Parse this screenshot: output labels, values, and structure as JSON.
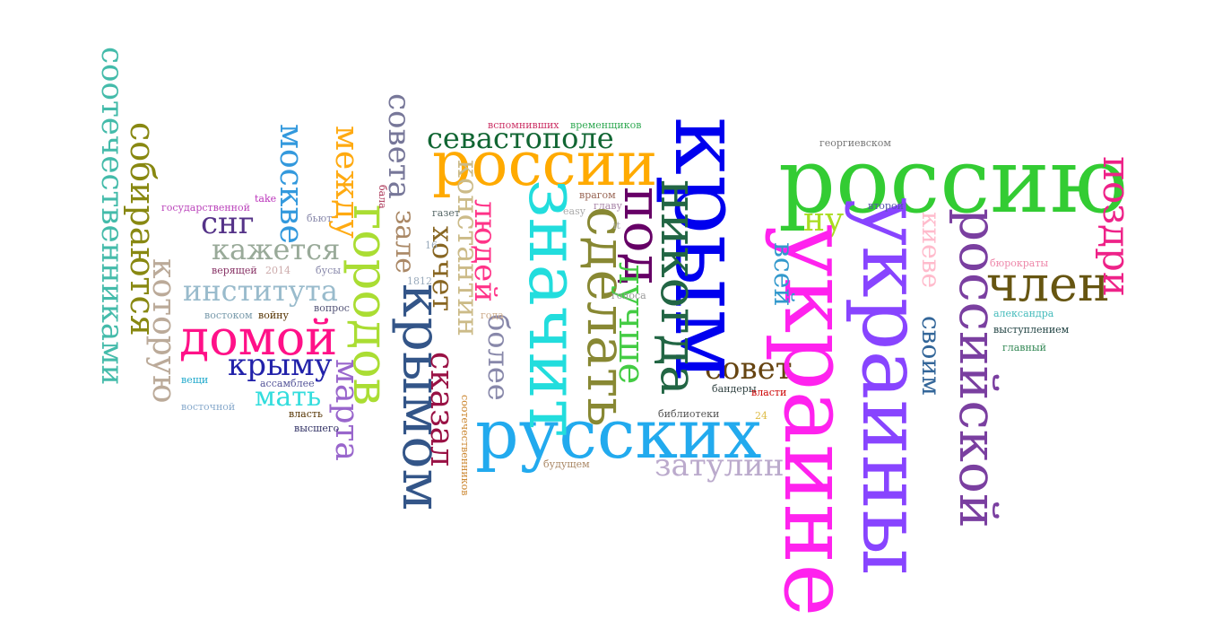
{
  "words": [
    {
      "text": "россию",
      "color": "#33cc33"
    },
    {
      "text": "крым",
      "color": "#0000ee"
    },
    {
      "text": "украине",
      "color": "#ff22ee"
    },
    {
      "text": "украины",
      "color": "#8844ff"
    },
    {
      "text": "российской",
      "color": "#7a3fa0"
    },
    {
      "text": "русских",
      "color": "#22aaee"
    },
    {
      "text": "россии",
      "color": "#ffaa00"
    },
    {
      "text": "значит",
      "color": "#22dddd"
    },
    {
      "text": "сделать",
      "color": "#888833"
    },
    {
      "text": "никогда",
      "color": "#226644"
    },
    {
      "text": "под",
      "color": "#660066"
    },
    {
      "text": "крымом",
      "color": "#335588"
    },
    {
      "text": "городов",
      "color": "#aadd33"
    },
    {
      "text": "домой",
      "color": "#ff1188"
    },
    {
      "text": "член",
      "color": "#665511"
    },
    {
      "text": "поздри",
      "color": "#ee2288"
    },
    {
      "text": "севастополе",
      "color": "#116633"
    },
    {
      "text": "лучше",
      "color": "#44cc44"
    },
    {
      "text": "соотечественниками",
      "color": "#44bbaa"
    },
    {
      "text": "собираются",
      "color": "#888811"
    },
    {
      "text": "которую",
      "color": "#bbaa99"
    },
    {
      "text": "москве",
      "color": "#3399dd"
    },
    {
      "text": "института",
      "color": "#99bbcc"
    },
    {
      "text": "кажется",
      "color": "#99aa99"
    },
    {
      "text": "крыму",
      "color": "#2222aa"
    },
    {
      "text": "мать",
      "color": "#33dddd"
    },
    {
      "text": "марта",
      "color": "#9966cc"
    },
    {
      "text": "между",
      "color": "#ffaa11"
    },
    {
      "text": "совета",
      "color": "#777799"
    },
    {
      "text": "зале",
      "color": "#aa8866"
    },
    {
      "text": "хочет",
      "color": "#886622"
    },
    {
      "text": "константин",
      "color": "#ccbb88"
    },
    {
      "text": "сказал",
      "color": "#991144"
    },
    {
      "text": "людей",
      "color": "#ff3388"
    },
    {
      "text": "более",
      "color": "#8888aa"
    },
    {
      "text": "совет",
      "color": "#664411"
    },
    {
      "text": "затулин",
      "color": "#bbaacc"
    },
    {
      "text": "ну",
      "color": "#aadd22"
    },
    {
      "text": "всей",
      "color": "#3399cc"
    },
    {
      "text": "киеве",
      "color": "#ffbbcc"
    },
    {
      "text": "своим",
      "color": "#336699"
    },
    {
      "text": "снг",
      "color": "#553388"
    },
    {
      "text": "вспомнивших",
      "color": "#cc3366"
    },
    {
      "text": "временщиков",
      "color": "#33aa55"
    },
    {
      "text": "георгиевском",
      "color": "#777777"
    },
    {
      "text": "второй",
      "color": "#5555aa"
    },
    {
      "text": "бюрократы",
      "color": "#ee88aa"
    },
    {
      "text": "александра",
      "color": "#44bbbb"
    },
    {
      "text": "выступлением",
      "color": "#224444"
    },
    {
      "text": "главный",
      "color": "#338855"
    },
    {
      "text": "бандеры",
      "color": "#334444"
    },
    {
      "text": "власти",
      "color": "#cc0000"
    },
    {
      "text": "библиотеки",
      "color": "#555555"
    },
    {
      "text": "будущем",
      "color": "#aa8866"
    },
    {
      "text": "государственной",
      "color": "#bb44bb"
    },
    {
      "text": "take",
      "color": "#bb33bb"
    },
    {
      "text": "бьют",
      "color": "#8888aa"
    },
    {
      "text": "бала",
      "color": "#aa3355"
    },
    {
      "text": "верящей",
      "color": "#883366"
    },
    {
      "text": "2014",
      "color": "#ccaaaa"
    },
    {
      "text": "бусы",
      "color": "#8888aa"
    },
    {
      "text": "вопрос",
      "color": "#555577"
    },
    {
      "text": "востоком",
      "color": "#7799aa"
    },
    {
      "text": "войну",
      "color": "#553300"
    },
    {
      "text": "ассамблее",
      "color": "#555599"
    },
    {
      "text": "власть",
      "color": "#553300"
    },
    {
      "text": "высшего",
      "color": "#333366"
    },
    {
      "text": "вещи",
      "color": "#22aacc"
    },
    {
      "text": "восточной",
      "color": "#88aacc"
    },
    {
      "text": "газет",
      "color": "#556666"
    },
    {
      "text": "главу",
      "color": "#aa88aa"
    },
    {
      "text": "голоса",
      "color": "#999999"
    },
    {
      "text": "года",
      "color": "#ccaa88"
    },
    {
      "text": "врагом",
      "color": "#996655"
    },
    {
      "text": "easy",
      "color": "#aaaaaa"
    },
    {
      "text": "it",
      "color": "#aaaaaa"
    },
    {
      "text": "1812",
      "color": "#99aabb"
    },
    {
      "text": "16",
      "color": "#99aabb"
    },
    {
      "text": "24",
      "color": "#ddbb44"
    },
    {
      "text": "соотечественников",
      "color": "#cc8833"
    }
  ]
}
